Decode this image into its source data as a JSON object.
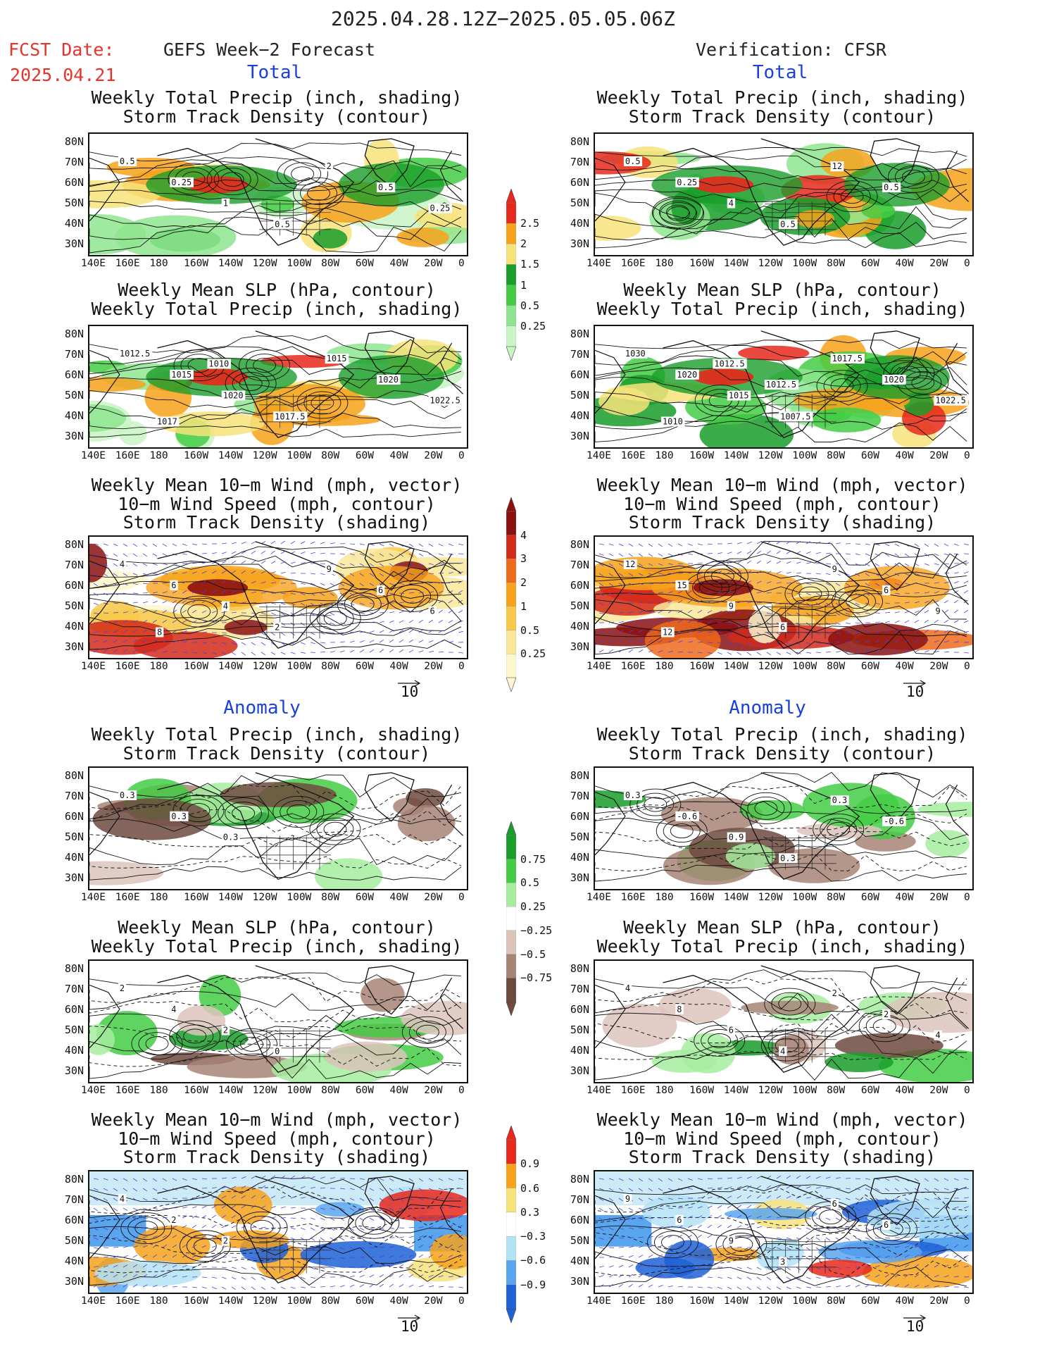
{
  "header": {
    "title": "2025.04.28.12Z−2025.05.05.06Z",
    "fcst_label": "FCST Date:",
    "fcst_date": "2025.04.21",
    "left_title": "GEFS Week−2 Forecast",
    "right_title": "Verification: CFSR"
  },
  "sections": {
    "total": "Total",
    "anomaly": "Anomaly"
  },
  "panel_titles": {
    "precip_track": [
      "Weekly Total Precip (inch, shading)",
      "Storm Track Density (contour)"
    ],
    "slp_precip": [
      "Weekly Mean SLP (hPa, contour)",
      "Weekly Total Precip (inch, shading)"
    ],
    "wind_track": [
      "Weekly Mean 10−m Wind (mph, vector)",
      "10−m Wind Speed (mph, contour)",
      "Storm Track Density (shading)"
    ]
  },
  "axes": {
    "lat_labels": [
      "80N",
      "70N",
      "60N",
      "50N",
      "40N",
      "30N"
    ],
    "lon_labels": [
      "140E",
      "160E",
      "180",
      "160W",
      "140W",
      "120W",
      "100W",
      "80W",
      "60W",
      "40W",
      "20W",
      "0"
    ]
  },
  "vector_reference": "10",
  "colorbars": {
    "total_precip": {
      "labels": [
        "2.5",
        "2",
        "1.5",
        "1",
        "0.5",
        "0.25"
      ],
      "colors": [
        "#e8281c",
        "#f7a21b",
        "#f7e37a",
        "#1a9e2b",
        "#44cc44",
        "#8fe58f",
        "#c9f5c4"
      ]
    },
    "total_track": {
      "labels": [
        "4",
        "3",
        "2",
        "1",
        "0.5",
        "0.25"
      ],
      "colors": [
        "#8b1010",
        "#d42a1a",
        "#f06a1c",
        "#f7a21b",
        "#f7c84a",
        "#fae79a",
        "#fdf7cf"
      ]
    },
    "anom_precip": {
      "labels": [
        "0.75",
        "0.5",
        "0.25",
        "−0.25",
        "−0.5",
        "−0.75"
      ],
      "colors": [
        "#1a9e2b",
        "#44cc44",
        "#a6ec9f",
        "#ffffff",
        "#dcc4bb",
        "#a88477",
        "#6e4a3f"
      ]
    },
    "anom_track": {
      "labels": [
        "0.9",
        "0.6",
        "0.3",
        "−0.3",
        "−0.6",
        "−0.9"
      ],
      "colors": [
        "#e8281c",
        "#f7a21b",
        "#f7e37a",
        "#ffffff",
        "#b4e2f5",
        "#5aa6ee",
        "#1e62d6"
      ]
    }
  },
  "chart_data": [
    {
      "type": "heatmap",
      "group": "Total",
      "column": "GEFS Week-2 Forecast",
      "field": "Weekly Total Precip (inch, shading) / Storm Track Density (contour)",
      "contour_labels": [
        "0.5",
        "0.25",
        "1",
        "0.5",
        "2",
        "0.5",
        "0.25"
      ]
    },
    {
      "type": "heatmap",
      "group": "Total",
      "column": "Verification: CFSR",
      "field": "Weekly Total Precip (inch, shading) / Storm Track Density (contour)",
      "contour_labels": [
        "0.5",
        "0.25",
        "4",
        "0.5",
        "12",
        "0.5"
      ]
    },
    {
      "type": "heatmap",
      "group": "Total",
      "column": "GEFS Week-2 Forecast",
      "field": "Weekly Mean SLP (hPa, contour) / Weekly Total Precip (inch, shading)",
      "contour_labels": [
        "1012.5",
        "1015",
        "1020",
        "1017.5",
        "1015",
        "1020",
        "1022.5",
        "1017",
        "1010"
      ]
    },
    {
      "type": "heatmap",
      "group": "Total",
      "column": "Verification: CFSR",
      "field": "Weekly Mean SLP (hPa, contour) / Weekly Total Precip (inch, shading)",
      "contour_labels": [
        "1030",
        "1020",
        "1015",
        "1007.5",
        "1017.5",
        "1020",
        "1022.5",
        "1010",
        "1012.5",
        "1012.5"
      ]
    },
    {
      "type": "heatmap",
      "group": "Total",
      "column": "GEFS Week-2 Forecast",
      "field": "Weekly Mean 10-m Wind (mph, vector) / 10-m Wind Speed (mph, contour) / Storm Track Density (shading)",
      "contour_labels": [
        "4",
        "6",
        "4",
        "2",
        "9",
        "6",
        "6",
        "8"
      ]
    },
    {
      "type": "heatmap",
      "group": "Total",
      "column": "Verification: CFSR",
      "field": "Weekly Mean 10-m Wind (mph, vector) / 10-m Wind Speed (mph, contour) / Storm Track Density (shading)",
      "contour_labels": [
        "12",
        "15",
        "9",
        "6",
        "9",
        "6",
        "9",
        "12"
      ]
    },
    {
      "type": "heatmap",
      "group": "Anomaly",
      "column": "GEFS Week-2 Forecast",
      "field": "Weekly Total Precip (inch, shading) / Storm Track Density (contour)",
      "contour_labels": [
        "0.3",
        "0.3",
        "0.3"
      ]
    },
    {
      "type": "heatmap",
      "group": "Anomaly",
      "column": "Verification: CFSR",
      "field": "Weekly Total Precip (inch, shading) / Storm Track Density (contour)",
      "contour_labels": [
        "0.3",
        "-0.6",
        "0.9",
        "0.3",
        "0.3",
        "-0.6"
      ]
    },
    {
      "type": "heatmap",
      "group": "Anomaly",
      "column": "GEFS Week-2 Forecast",
      "field": "Weekly Mean SLP (hPa, contour) / Weekly Total Precip (inch, shading)",
      "contour_labels": [
        "2",
        "4",
        "2",
        "0"
      ]
    },
    {
      "type": "heatmap",
      "group": "Anomaly",
      "column": "Verification: CFSR",
      "field": "Weekly Mean SLP (hPa, contour) / Weekly Total Precip (inch, shading)",
      "contour_labels": [
        "4",
        "8",
        "6",
        "4",
        "2",
        "2",
        "4"
      ]
    },
    {
      "type": "heatmap",
      "group": "Anomaly",
      "column": "GEFS Week-2 Forecast",
      "field": "Weekly Mean 10-m Wind (mph, vector) / 10-m Wind Speed (mph, contour) / Storm Track Density (shading)",
      "contour_labels": [
        "4",
        "2",
        "2"
      ]
    },
    {
      "type": "heatmap",
      "group": "Anomaly",
      "column": "Verification: CFSR",
      "field": "Weekly Mean 10-m Wind (mph, vector) / 10-m Wind Speed (mph, contour) / Storm Track Density (shading)",
      "contour_labels": [
        "9",
        "6",
        "9",
        "3",
        "6",
        "6"
      ]
    }
  ]
}
